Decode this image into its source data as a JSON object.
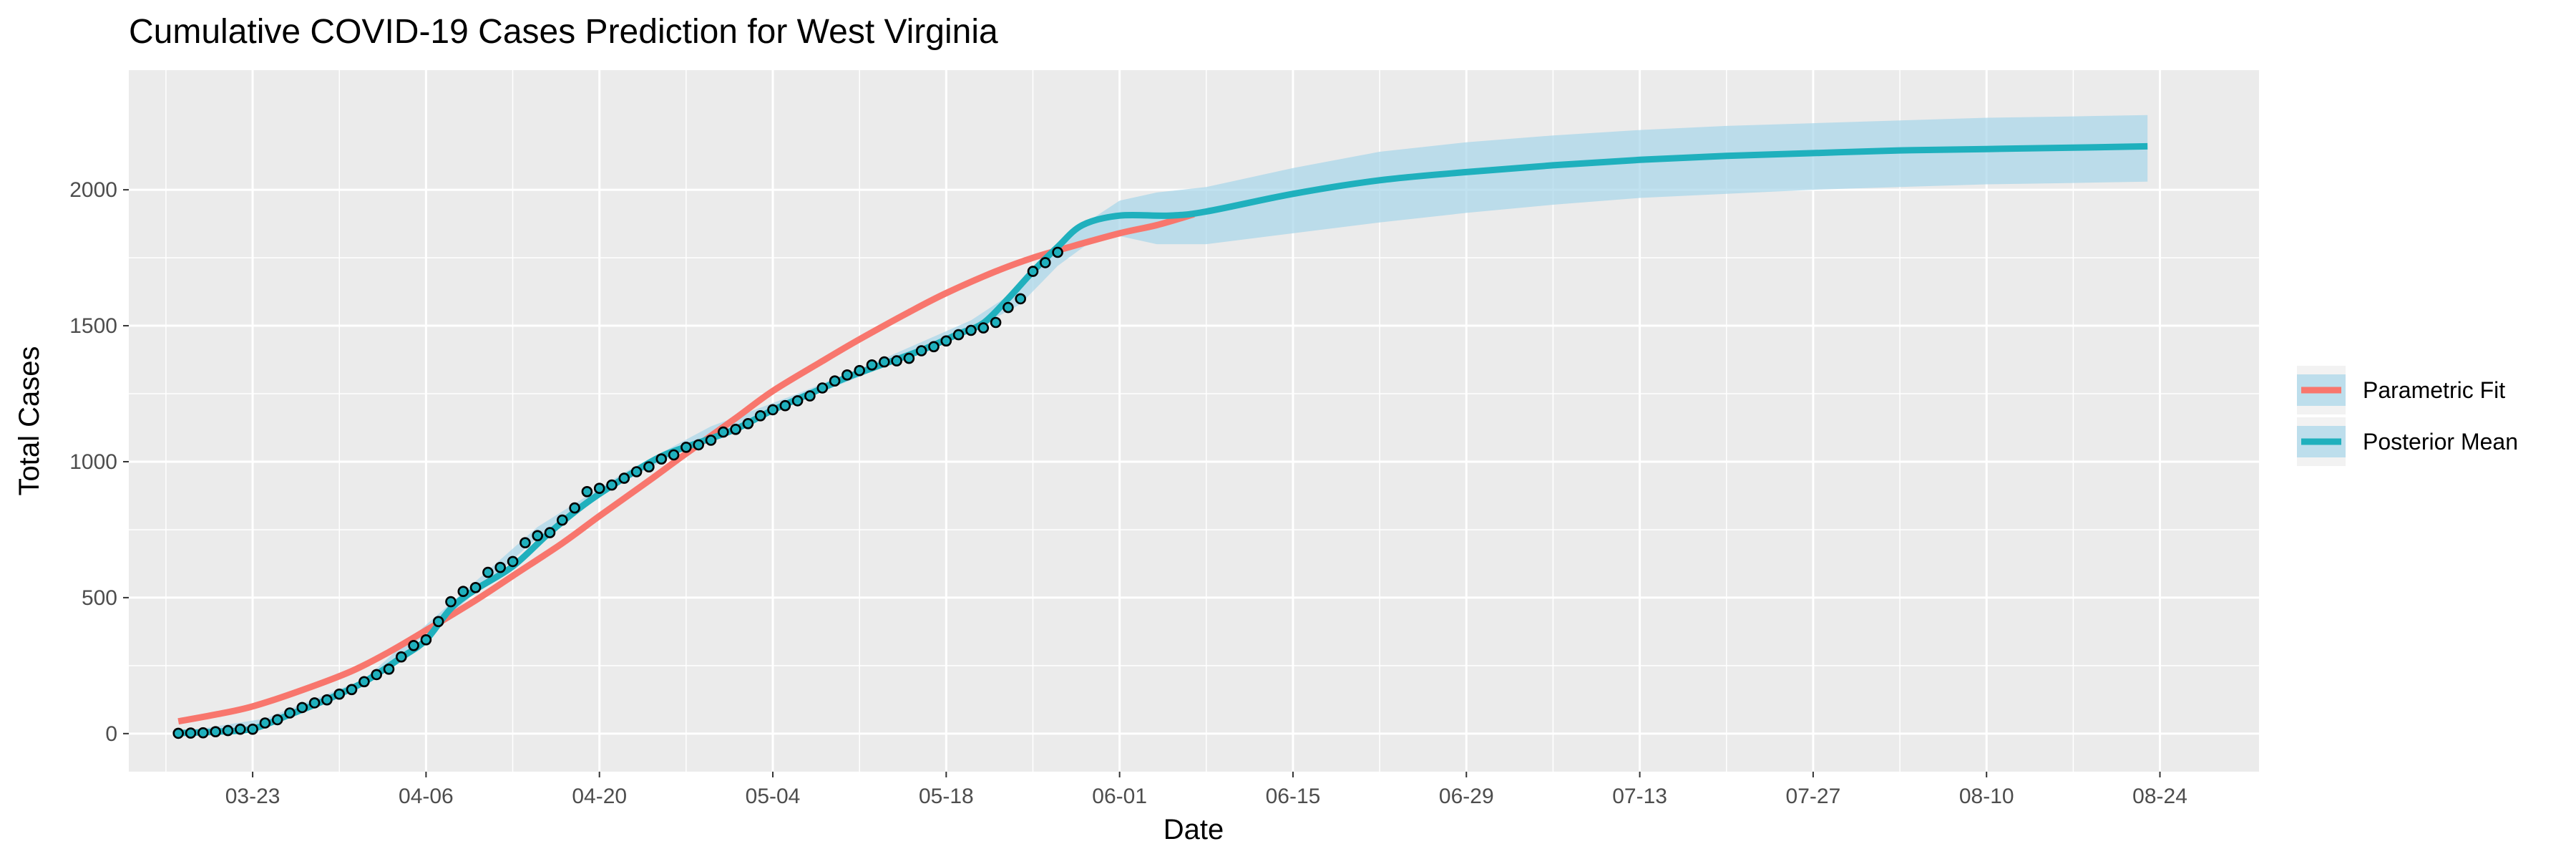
{
  "chart_data": {
    "type": "line",
    "title": "Cumulative COVID-19 Cases Prediction for West Virginia",
    "xlabel": "Date",
    "ylabel": "Total Cases",
    "x_tick_labels": [
      "03-23",
      "04-06",
      "04-20",
      "05-04",
      "05-18",
      "06-01",
      "06-15",
      "06-29",
      "07-13",
      "07-27",
      "08-10",
      "08-24"
    ],
    "x_tick_dates": [
      "2020-03-23",
      "2020-04-06",
      "2020-04-20",
      "2020-05-04",
      "2020-05-18",
      "2020-06-01",
      "2020-06-15",
      "2020-06-29",
      "2020-07-13",
      "2020-07-27",
      "2020-08-10",
      "2020-08-24"
    ],
    "y_ticks": [
      0,
      500,
      1000,
      1500,
      2000
    ],
    "xlim": [
      "2020-03-13",
      "2020-09-01"
    ],
    "ylim": [
      -140,
      2440
    ],
    "grid": true,
    "legend_position": "right",
    "colors": {
      "parametric": "#F8766D",
      "posterior": "#1FB0BD",
      "band": "#a6d6ea",
      "panel": "#ebebeb",
      "grid": "#ffffff",
      "point_fill": "#1FB0BD",
      "point_stroke": "#000000"
    },
    "legend": [
      {
        "label": "Parametric Fit",
        "series": "parametric"
      },
      {
        "label": "Posterior Mean",
        "series": "posterior"
      }
    ],
    "observed": {
      "name": "",
      "x": [
        "2020-03-17",
        "2020-03-18",
        "2020-03-19",
        "2020-03-20",
        "2020-03-21",
        "2020-03-22",
        "2020-03-23",
        "2020-03-24",
        "2020-03-25",
        "2020-03-26",
        "2020-03-27",
        "2020-03-28",
        "2020-03-29",
        "2020-03-30",
        "2020-03-31",
        "2020-04-01",
        "2020-04-02",
        "2020-04-03",
        "2020-04-04",
        "2020-04-05",
        "2020-04-06",
        "2020-04-07",
        "2020-04-08",
        "2020-04-09",
        "2020-04-10",
        "2020-04-11",
        "2020-04-12",
        "2020-04-13",
        "2020-04-14",
        "2020-04-15",
        "2020-04-16",
        "2020-04-17",
        "2020-04-18",
        "2020-04-19",
        "2020-04-20",
        "2020-04-21",
        "2020-04-22",
        "2020-04-23",
        "2020-04-24",
        "2020-04-25",
        "2020-04-26",
        "2020-04-27",
        "2020-04-28",
        "2020-04-29",
        "2020-04-30",
        "2020-05-01",
        "2020-05-02",
        "2020-05-03",
        "2020-05-04",
        "2020-05-05",
        "2020-05-06",
        "2020-05-07",
        "2020-05-08",
        "2020-05-09",
        "2020-05-10",
        "2020-05-11",
        "2020-05-12",
        "2020-05-13",
        "2020-05-14",
        "2020-05-15",
        "2020-05-16",
        "2020-05-17",
        "2020-05-18",
        "2020-05-19",
        "2020-05-20",
        "2020-05-21",
        "2020-05-22",
        "2020-05-23",
        "2020-05-24",
        "2020-05-25",
        "2020-05-26",
        "2020-05-27"
      ],
      "y": [
        1,
        2,
        3,
        7,
        11,
        16,
        16,
        39,
        51,
        76,
        96,
        113,
        124,
        145,
        162,
        191,
        217,
        237,
        282,
        324,
        345,
        412,
        485,
        523,
        537,
        593,
        611,
        633,
        702,
        728,
        739,
        785,
        830,
        890,
        902,
        914,
        939,
        963,
        981,
        1010,
        1025,
        1053,
        1062,
        1079,
        1109,
        1119,
        1140,
        1169,
        1191,
        1206,
        1224,
        1242,
        1271,
        1297,
        1319,
        1335,
        1356,
        1367,
        1371,
        1380,
        1408,
        1423,
        1444,
        1467,
        1483,
        1492,
        1512,
        1567,
        1599,
        1700,
        1732,
        1770
      ]
    },
    "series": [
      {
        "key": "parametric",
        "name": "Parametric Fit",
        "x": [
          "2020-03-17",
          "2020-03-20",
          "2020-03-23",
          "2020-03-27",
          "2020-03-31",
          "2020-04-03",
          "2020-04-06",
          "2020-04-10",
          "2020-04-13",
          "2020-04-17",
          "2020-04-20",
          "2020-04-24",
          "2020-04-27",
          "2020-05-01",
          "2020-05-04",
          "2020-05-08",
          "2020-05-11",
          "2020-05-15",
          "2020-05-18",
          "2020-05-22",
          "2020-05-25",
          "2020-05-28",
          "2020-06-01",
          "2020-06-04",
          "2020-06-07"
        ],
        "y": [
          45,
          70,
          100,
          160,
          230,
          300,
          380,
          490,
          580,
          700,
          800,
          930,
          1030,
          1160,
          1260,
          1370,
          1450,
          1550,
          1620,
          1700,
          1750,
          1790,
          1840,
          1870,
          1910
        ]
      },
      {
        "key": "posterior",
        "name": "Posterior Mean",
        "x": [
          "2020-03-17",
          "2020-03-20",
          "2020-03-23",
          "2020-03-26",
          "2020-03-29",
          "2020-04-01",
          "2020-04-04",
          "2020-04-06",
          "2020-04-08",
          "2020-04-10",
          "2020-04-13",
          "2020-04-16",
          "2020-04-19",
          "2020-04-22",
          "2020-04-25",
          "2020-04-28",
          "2020-05-01",
          "2020-05-04",
          "2020-05-07",
          "2020-05-10",
          "2020-05-13",
          "2020-05-16",
          "2020-05-19",
          "2020-05-21",
          "2020-05-23",
          "2020-05-25",
          "2020-05-27",
          "2020-05-29",
          "2020-06-01",
          "2020-06-05",
          "2020-06-08",
          "2020-06-15",
          "2020-06-22",
          "2020-06-29",
          "2020-07-06",
          "2020-07-13",
          "2020-07-20",
          "2020-07-27",
          "2020-08-03",
          "2020-08-10",
          "2020-08-17",
          "2020-08-23"
        ],
        "y": [
          2,
          7,
          18,
          70,
          125,
          190,
          280,
          345,
          460,
          530,
          615,
          740,
          850,
          940,
          1020,
          1070,
          1120,
          1190,
          1250,
          1310,
          1360,
          1410,
          1470,
          1510,
          1600,
          1700,
          1790,
          1870,
          1905,
          1905,
          1920,
          1985,
          2035,
          2065,
          2090,
          2110,
          2125,
          2135,
          2145,
          2150,
          2155,
          2160
        ]
      }
    ],
    "band": {
      "name": "",
      "x": [
        "2020-03-17",
        "2020-03-24",
        "2020-04-01",
        "2020-04-08",
        "2020-04-15",
        "2020-04-22",
        "2020-04-29",
        "2020-05-06",
        "2020-05-13",
        "2020-05-20",
        "2020-05-24",
        "2020-05-27",
        "2020-05-30",
        "2020-06-01",
        "2020-06-04",
        "2020-06-08",
        "2020-06-15",
        "2020-06-22",
        "2020-06-29",
        "2020-07-06",
        "2020-07-13",
        "2020-07-20",
        "2020-07-27",
        "2020-08-03",
        "2020-08-10",
        "2020-08-17",
        "2020-08-23"
      ],
      "lower": [
        0,
        30,
        180,
        440,
        720,
        930,
        1090,
        1220,
        1350,
        1480,
        1580,
        1720,
        1820,
        1830,
        1800,
        1800,
        1840,
        1880,
        1915,
        1945,
        1970,
        1985,
        2000,
        2010,
        2020,
        2025,
        2030
      ],
      "upper": [
        5,
        55,
        200,
        480,
        760,
        960,
        1130,
        1250,
        1380,
        1520,
        1640,
        1800,
        1900,
        1960,
        1990,
        2010,
        2080,
        2140,
        2175,
        2200,
        2220,
        2235,
        2245,
        2255,
        2265,
        2270,
        2275
      ]
    }
  }
}
